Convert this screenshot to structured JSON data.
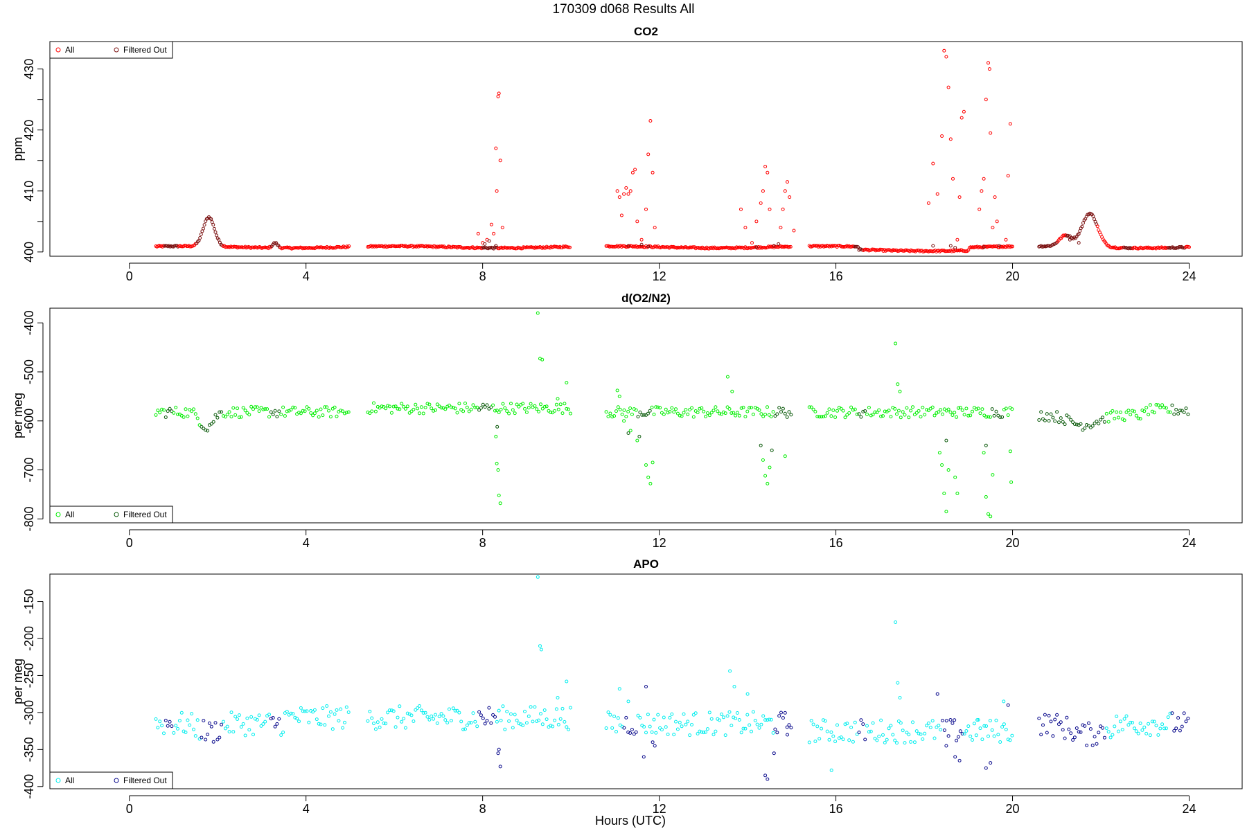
{
  "figure": {
    "suptitle": "170309   d068   Results All",
    "xlabel": "Hours (UTC)"
  },
  "chart_data": [
    {
      "type": "scatter",
      "title": "CO2",
      "xlabel": "",
      "ylabel": "ppm",
      "xlim": [
        -1.8,
        25.2
      ],
      "ylim": [
        399.3,
        434.5
      ],
      "xticks": [
        0,
        4,
        8,
        12,
        16,
        20,
        24
      ],
      "yticks": [
        400,
        405,
        410,
        415,
        420,
        425,
        430
      ],
      "ytick_labels": [
        "400",
        "",
        "410",
        "",
        "420",
        "",
        "430"
      ],
      "legend": [
        "All",
        "Filtered Out"
      ],
      "legend_position": "top-left",
      "colors": {
        "all": "#ff0000",
        "filtered": "#7a1010"
      },
      "segments": [
        [
          0.6,
          5.0
        ],
        [
          5.4,
          10.0
        ],
        [
          10.8,
          15.0
        ],
        [
          15.4,
          20.0
        ],
        [
          20.6,
          24.0
        ]
      ],
      "spikes_all": [
        [
          7.9,
          403.0
        ],
        [
          8.0,
          401.5
        ],
        [
          8.1,
          402.0
        ],
        [
          8.2,
          404.5
        ],
        [
          8.25,
          403.0
        ],
        [
          8.3,
          417.0
        ],
        [
          8.32,
          410.0
        ],
        [
          8.35,
          425.5
        ],
        [
          8.37,
          426.0
        ],
        [
          8.4,
          415.0
        ],
        [
          8.45,
          404.0
        ],
        [
          11.05,
          410.0
        ],
        [
          11.1,
          409.0
        ],
        [
          11.15,
          406.0
        ],
        [
          11.2,
          409.5
        ],
        [
          11.25,
          410.5
        ],
        [
          11.3,
          409.5
        ],
        [
          11.35,
          410.0
        ],
        [
          11.4,
          413.0
        ],
        [
          11.45,
          413.5
        ],
        [
          11.5,
          405.0
        ],
        [
          11.6,
          402.0
        ],
        [
          11.7,
          407.0
        ],
        [
          11.75,
          416.0
        ],
        [
          11.8,
          421.5
        ],
        [
          11.85,
          413.0
        ],
        [
          11.9,
          404.0
        ],
        [
          13.85,
          407.0
        ],
        [
          13.95,
          404.0
        ],
        [
          14.1,
          401.5
        ],
        [
          14.2,
          405.0
        ],
        [
          14.3,
          408.0
        ],
        [
          14.35,
          410.0
        ],
        [
          14.4,
          414.0
        ],
        [
          14.45,
          413.0
        ],
        [
          14.5,
          407.0
        ],
        [
          14.75,
          404.0
        ],
        [
          14.8,
          407.0
        ],
        [
          14.85,
          410.0
        ],
        [
          14.9,
          411.5
        ],
        [
          14.95,
          409.0
        ],
        [
          15.05,
          403.5
        ],
        [
          18.1,
          408.0
        ],
        [
          18.2,
          414.5
        ],
        [
          18.3,
          409.5
        ],
        [
          18.4,
          419.0
        ],
        [
          18.45,
          433.0
        ],
        [
          18.5,
          432.0
        ],
        [
          18.55,
          427.0
        ],
        [
          18.6,
          418.5
        ],
        [
          18.65,
          412.0
        ],
        [
          18.75,
          402.0
        ],
        [
          18.8,
          409.0
        ],
        [
          18.85,
          422.0
        ],
        [
          18.9,
          423.0
        ],
        [
          19.25,
          407.0
        ],
        [
          19.3,
          410.0
        ],
        [
          19.35,
          412.0
        ],
        [
          19.4,
          425.0
        ],
        [
          19.45,
          431.0
        ],
        [
          19.48,
          430.0
        ],
        [
          19.5,
          419.5
        ],
        [
          19.55,
          404.0
        ],
        [
          19.6,
          409.0
        ],
        [
          19.65,
          405.0
        ],
        [
          19.85,
          402.0
        ],
        [
          19.9,
          412.5
        ],
        [
          19.95,
          421.0
        ]
      ],
      "spikes_filtered": [
        [
          8.05,
          401.3
        ],
        [
          8.15,
          401.8
        ],
        [
          8.3,
          401.0
        ],
        [
          11.3,
          401.0
        ],
        [
          11.6,
          401.2
        ],
        [
          11.75,
          400.9
        ],
        [
          14.2,
          400.8
        ],
        [
          14.6,
          401.0
        ],
        [
          14.7,
          401.3
        ],
        [
          18.2,
          401.0
        ],
        [
          18.6,
          401.0
        ],
        [
          18.7,
          400.7
        ],
        [
          19.35,
          400.8
        ],
        [
          19.7,
          401.0
        ],
        [
          21.3,
          402.0
        ],
        [
          21.5,
          401.5
        ]
      ]
    },
    {
      "type": "scatter",
      "title": "d(O2/N2)",
      "xlabel": "",
      "ylabel": "per meg",
      "xlim": [
        -1.8,
        25.2
      ],
      "ylim": [
        -808,
        -370
      ],
      "xticks": [
        0,
        4,
        8,
        12,
        16,
        20,
        24
      ],
      "yticks": [
        -400,
        -500,
        -600,
        -700,
        -800
      ],
      "ytick_labels": [
        "-400",
        "-500",
        "-600",
        "-700",
        "-800"
      ],
      "legend": [
        "All",
        "Filtered Out"
      ],
      "legend_position": "bottom-left",
      "colors": {
        "all": "#00ee00",
        "filtered": "#0b5a0b"
      },
      "segments": [
        [
          0.6,
          5.0
        ],
        [
          5.4,
          10.0
        ],
        [
          10.8,
          15.0
        ],
        [
          15.4,
          20.0
        ],
        [
          20.6,
          24.0
        ]
      ],
      "spikes_all": [
        [
          8.3,
          -632.0
        ],
        [
          8.32,
          -687.0
        ],
        [
          8.35,
          -700.0
        ],
        [
          8.37,
          -752.0
        ],
        [
          8.4,
          -768.0
        ],
        [
          9.25,
          -380.0
        ],
        [
          9.3,
          -473.0
        ],
        [
          9.35,
          -475.0
        ],
        [
          9.7,
          -555.0
        ],
        [
          9.9,
          -522.0
        ],
        [
          11.05,
          -538.0
        ],
        [
          11.1,
          -550.0
        ],
        [
          11.2,
          -600.0
        ],
        [
          11.35,
          -620.0
        ],
        [
          11.5,
          -640.0
        ],
        [
          11.7,
          -690.0
        ],
        [
          11.75,
          -715.0
        ],
        [
          11.8,
          -728.0
        ],
        [
          11.85,
          -685.0
        ],
        [
          13.55,
          -510.0
        ],
        [
          13.65,
          -540.0
        ],
        [
          14.35,
          -680.0
        ],
        [
          14.4,
          -712.0
        ],
        [
          14.45,
          -728.0
        ],
        [
          14.5,
          -695.0
        ],
        [
          14.85,
          -672.0
        ],
        [
          17.35,
          -442.0
        ],
        [
          17.4,
          -525.0
        ],
        [
          17.45,
          -540.0
        ],
        [
          18.35,
          -665.0
        ],
        [
          18.4,
          -690.0
        ],
        [
          18.45,
          -748.0
        ],
        [
          18.5,
          -785.0
        ],
        [
          18.55,
          -700.0
        ],
        [
          18.7,
          -715.0
        ],
        [
          18.75,
          -748.0
        ],
        [
          19.35,
          -665.0
        ],
        [
          19.4,
          -755.0
        ],
        [
          19.45,
          -790.0
        ],
        [
          19.5,
          -795.0
        ],
        [
          19.55,
          -710.0
        ],
        [
          19.95,
          -662.0
        ],
        [
          19.97,
          -725.0
        ]
      ],
      "spikes_filtered": [
        [
          8.33,
          -612.0
        ],
        [
          11.3,
          -625.0
        ],
        [
          11.55,
          -632.0
        ],
        [
          14.3,
          -650.0
        ],
        [
          14.55,
          -660.0
        ],
        [
          18.5,
          -640.0
        ],
        [
          19.4,
          -650.0
        ]
      ]
    },
    {
      "type": "scatter",
      "title": "APO",
      "xlabel": "Hours (UTC)",
      "ylabel": "per meg",
      "xlim": [
        -1.8,
        25.2
      ],
      "ylim": [
        -403,
        -113
      ],
      "xticks": [
        0,
        4,
        8,
        12,
        16,
        20,
        24
      ],
      "yticks": [
        -150,
        -200,
        -250,
        -300,
        -350,
        -400
      ],
      "ytick_labels": [
        "-150",
        "-200",
        "-250",
        "-300",
        "-350",
        "-400"
      ],
      "legend": [
        "All",
        "Filtered Out"
      ],
      "legend_position": "bottom-left",
      "colors": {
        "all": "#00eeee",
        "filtered": "#0a0a8c"
      },
      "segments": [
        [
          0.6,
          5.0
        ],
        [
          5.4,
          10.0
        ],
        [
          10.8,
          15.0
        ],
        [
          15.4,
          20.0
        ],
        [
          20.6,
          24.0
        ]
      ],
      "spikes_all": [
        [
          9.25,
          -117.0
        ],
        [
          9.3,
          -210.0
        ],
        [
          9.33,
          -215.0
        ],
        [
          9.7,
          -280.0
        ],
        [
          9.9,
          -258.0
        ],
        [
          11.1,
          -268.0
        ],
        [
          11.3,
          -285.0
        ],
        [
          13.6,
          -244.0
        ],
        [
          13.7,
          -265.0
        ],
        [
          14.0,
          -275.0
        ],
        [
          15.9,
          -378.0
        ],
        [
          17.35,
          -178.0
        ],
        [
          17.4,
          -260.0
        ],
        [
          17.45,
          -280.0
        ],
        [
          19.2,
          -310.0
        ],
        [
          19.8,
          -285.0
        ]
      ],
      "spikes_filtered": [
        [
          8.35,
          -355.0
        ],
        [
          8.37,
          -350.0
        ],
        [
          8.4,
          -373.0
        ],
        [
          11.65,
          -360.0
        ],
        [
          11.7,
          -265.0
        ],
        [
          11.85,
          -340.0
        ],
        [
          11.9,
          -345.0
        ],
        [
          14.4,
          -385.0
        ],
        [
          14.45,
          -390.0
        ],
        [
          14.6,
          -355.0
        ],
        [
          14.9,
          -330.0
        ],
        [
          18.3,
          -275.0
        ],
        [
          18.5,
          -345.0
        ],
        [
          18.7,
          -360.0
        ],
        [
          18.8,
          -365.0
        ],
        [
          19.4,
          -375.0
        ],
        [
          19.5,
          -368.0
        ],
        [
          19.9,
          -290.0
        ]
      ]
    }
  ]
}
